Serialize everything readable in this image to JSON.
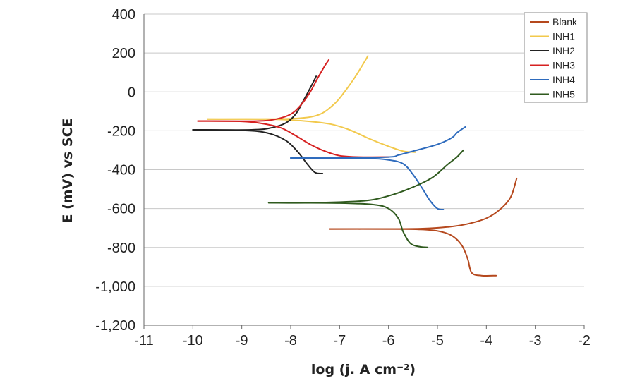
{
  "chart_data": {
    "type": "line",
    "title": "",
    "xlabel": "log (j. A cm⁻²)",
    "ylabel": "E (mV) vs SCE",
    "xlim": [
      -11,
      -2
    ],
    "ylim": [
      -1200,
      400
    ],
    "x_ticks": [
      -11,
      -10,
      -9,
      -8,
      -7,
      -6,
      -5,
      -4,
      -3,
      -2
    ],
    "y_ticks": [
      400,
      200,
      0,
      -200,
      -400,
      -600,
      -800,
      -1000,
      -1200
    ],
    "x_tick_labels": [
      "-11",
      "-10",
      "-9",
      "-8",
      "-7",
      "-6",
      "-5",
      "-4",
      "-3",
      "-2"
    ],
    "y_tick_labels": [
      "400",
      "200",
      "0",
      "-200",
      "-400",
      "-600",
      "-800",
      "-1,000",
      "-1,200"
    ],
    "grid": "horizontal",
    "legend_position": "top-right",
    "series": [
      {
        "name": "Blank",
        "color": "#b5481d",
        "anodic": [
          [
            -7.2,
            -705
          ],
          [
            -6.0,
            -705
          ],
          [
            -5.3,
            -703
          ],
          [
            -4.8,
            -695
          ],
          [
            -4.4,
            -680
          ],
          [
            -4.0,
            -650
          ],
          [
            -3.7,
            -600
          ],
          [
            -3.5,
            -540
          ],
          [
            -3.38,
            -445
          ]
        ],
        "cathodic": [
          [
            -7.2,
            -705
          ],
          [
            -6.0,
            -705
          ],
          [
            -5.4,
            -707
          ],
          [
            -5.0,
            -715
          ],
          [
            -4.7,
            -740
          ],
          [
            -4.5,
            -790
          ],
          [
            -4.38,
            -860
          ],
          [
            -4.3,
            -930
          ],
          [
            -4.1,
            -945
          ],
          [
            -3.8,
            -945
          ]
        ]
      },
      {
        "name": "INH1",
        "color": "#f2c94c",
        "anodic": [
          [
            -9.7,
            -140
          ],
          [
            -8.5,
            -140
          ],
          [
            -7.8,
            -135
          ],
          [
            -7.4,
            -115
          ],
          [
            -7.1,
            -60
          ],
          [
            -6.9,
            0
          ],
          [
            -6.7,
            70
          ],
          [
            -6.55,
            130
          ],
          [
            -6.42,
            185
          ]
        ],
        "cathodic": [
          [
            -9.7,
            -140
          ],
          [
            -8.5,
            -140
          ],
          [
            -7.8,
            -148
          ],
          [
            -7.2,
            -165
          ],
          [
            -6.8,
            -195
          ],
          [
            -6.4,
            -240
          ],
          [
            -6.0,
            -280
          ],
          [
            -5.7,
            -305
          ],
          [
            -5.45,
            -310
          ]
        ]
      },
      {
        "name": "INH2",
        "color": "#222222",
        "anodic": [
          [
            -10.0,
            -195
          ],
          [
            -8.8,
            -195
          ],
          [
            -8.4,
            -185
          ],
          [
            -8.1,
            -160
          ],
          [
            -7.9,
            -115
          ],
          [
            -7.75,
            -50
          ],
          [
            -7.6,
            20
          ],
          [
            -7.48,
            80
          ]
        ],
        "cathodic": [
          [
            -10.0,
            -195
          ],
          [
            -9.0,
            -198
          ],
          [
            -8.5,
            -210
          ],
          [
            -8.1,
            -250
          ],
          [
            -7.85,
            -310
          ],
          [
            -7.65,
            -375
          ],
          [
            -7.5,
            -415
          ],
          [
            -7.35,
            -420
          ]
        ]
      },
      {
        "name": "INH3",
        "color": "#d62121",
        "anodic": [
          [
            -9.9,
            -150
          ],
          [
            -8.7,
            -150
          ],
          [
            -8.3,
            -140
          ],
          [
            -8.0,
            -115
          ],
          [
            -7.8,
            -70
          ],
          [
            -7.6,
            0
          ],
          [
            -7.45,
            70
          ],
          [
            -7.3,
            135
          ],
          [
            -7.22,
            165
          ]
        ],
        "cathodic": [
          [
            -9.9,
            -150
          ],
          [
            -9.0,
            -152
          ],
          [
            -8.6,
            -162
          ],
          [
            -8.2,
            -185
          ],
          [
            -7.9,
            -225
          ],
          [
            -7.6,
            -270
          ],
          [
            -7.3,
            -305
          ],
          [
            -7.0,
            -328
          ],
          [
            -6.6,
            -335
          ],
          [
            -6.0,
            -335
          ]
        ]
      },
      {
        "name": "INH4",
        "color": "#2e6bbd",
        "anodic": [
          [
            -8.0,
            -340
          ],
          [
            -7.0,
            -340
          ],
          [
            -6.0,
            -335
          ],
          [
            -5.8,
            -325
          ],
          [
            -5.5,
            -305
          ],
          [
            -5.0,
            -270
          ],
          [
            -4.7,
            -235
          ],
          [
            -4.6,
            -210
          ],
          [
            -4.43,
            -180
          ]
        ],
        "cathodic": [
          [
            -8.0,
            -340
          ],
          [
            -6.5,
            -342
          ],
          [
            -6.0,
            -350
          ],
          [
            -5.7,
            -370
          ],
          [
            -5.5,
            -425
          ],
          [
            -5.3,
            -500
          ],
          [
            -5.15,
            -560
          ],
          [
            -5.0,
            -600
          ],
          [
            -4.88,
            -605
          ]
        ]
      },
      {
        "name": "INH5",
        "color": "#2f5a1e",
        "anodic": [
          [
            -8.45,
            -570
          ],
          [
            -7.5,
            -570
          ],
          [
            -6.5,
            -560
          ],
          [
            -6.0,
            -535
          ],
          [
            -5.5,
            -490
          ],
          [
            -5.1,
            -440
          ],
          [
            -4.8,
            -375
          ],
          [
            -4.6,
            -335
          ],
          [
            -4.47,
            -300
          ]
        ],
        "cathodic": [
          [
            -8.45,
            -570
          ],
          [
            -7.0,
            -572
          ],
          [
            -6.3,
            -580
          ],
          [
            -6.0,
            -600
          ],
          [
            -5.8,
            -650
          ],
          [
            -5.7,
            -720
          ],
          [
            -5.55,
            -780
          ],
          [
            -5.35,
            -797
          ],
          [
            -5.2,
            -800
          ]
        ]
      }
    ]
  }
}
